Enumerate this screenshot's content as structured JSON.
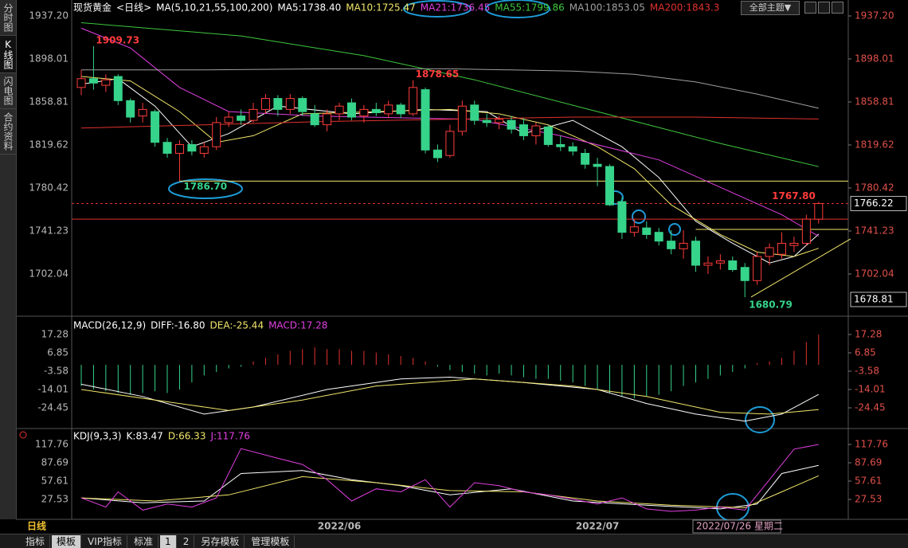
{
  "sidebar": {
    "tabs": [
      "分时图",
      "K线图",
      "闪电图",
      "合约资料"
    ]
  },
  "header": {
    "symbol": "现货黄金",
    "period": "<日线>",
    "indicator": "MA(5,10,21,55,100,200)",
    "theme_button": "全部主题▼"
  },
  "chart_data": [
    {
      "type": "candlestick",
      "categories": [
        null,
        null,
        null,
        null,
        null,
        null,
        null,
        null,
        null,
        null,
        null,
        null,
        null,
        null,
        null,
        null,
        null,
        null,
        null,
        null,
        null,
        "2022/06",
        null,
        null,
        null,
        null,
        null,
        null,
        null,
        null,
        null,
        null,
        null,
        null,
        null,
        null,
        null,
        null,
        null,
        null,
        null,
        null,
        "2022/07",
        null,
        null,
        null,
        null,
        null,
        null,
        null,
        null,
        null,
        null,
        null,
        null,
        null,
        null,
        null,
        null,
        null,
        null
      ],
      "open": [
        1872,
        1880,
        1874,
        1882,
        1860,
        1846,
        1850,
        1822,
        1812,
        1820,
        1812,
        1818,
        1840,
        1846,
        1842,
        1852,
        1862,
        1852,
        1862,
        1848,
        1838,
        1848,
        1858,
        1846,
        1852,
        1848,
        1856,
        1848,
        1870,
        1815,
        1810,
        1832,
        1856,
        1842,
        1840,
        1842,
        1838,
        1828,
        1836,
        1820,
        1818,
        1812,
        1802,
        1800,
        1768,
        1740,
        1744,
        1740,
        1732,
        1725,
        1732,
        1710,
        1712,
        1714,
        1708,
        1696,
        1718,
        1720,
        1728,
        1730,
        1752
      ],
      "high": [
        1888,
        1909.73,
        1884,
        1884,
        1862,
        1858,
        1852,
        1826,
        1824,
        1824,
        1822,
        1845,
        1850,
        1852,
        1858,
        1866,
        1865,
        1866,
        1864,
        1856,
        1852,
        1858,
        1862,
        1856,
        1858,
        1860,
        1858,
        1878.65,
        1872,
        1820,
        1838,
        1860,
        1860,
        1848,
        1846,
        1846,
        1844,
        1840,
        1838,
        1828,
        1822,
        1816,
        1808,
        1802,
        1772,
        1752,
        1750,
        1744,
        1742,
        1742,
        1736,
        1718,
        1720,
        1718,
        1712,
        1722,
        1730,
        1740,
        1736,
        1756,
        1767.8
      ],
      "low": [
        1865,
        1870,
        1868,
        1856,
        1840,
        1840,
        1818,
        1808,
        1786.7,
        1810,
        1808,
        1815,
        1836,
        1838,
        1840,
        1848,
        1846,
        1848,
        1846,
        1836,
        1832,
        1842,
        1842,
        1840,
        1846,
        1844,
        1844,
        1846,
        1812,
        1804,
        1808,
        1828,
        1838,
        1836,
        1834,
        1830,
        1824,
        1820,
        1818,
        1814,
        1810,
        1798,
        1782,
        1764,
        1734,
        1736,
        1734,
        1728,
        1720,
        1716,
        1704,
        1702,
        1706,
        1704,
        1680.79,
        1692,
        1710,
        1716,
        1722,
        1728,
        1748
      ],
      "close": [
        1880,
        1876,
        1879,
        1860,
        1845,
        1852,
        1822,
        1812,
        1820,
        1814,
        1818,
        1840,
        1845,
        1842,
        1852,
        1862,
        1852,
        1862,
        1850,
        1838,
        1848,
        1855,
        1845,
        1852,
        1849,
        1856,
        1848,
        1872,
        1815,
        1808,
        1832,
        1855,
        1842,
        1840,
        1843,
        1834,
        1828,
        1837,
        1820,
        1818,
        1814,
        1802,
        1800,
        1765,
        1740,
        1745,
        1738,
        1732,
        1725,
        1730,
        1710,
        1712,
        1714,
        1706,
        1696,
        1718,
        1726,
        1730,
        1730,
        1752,
        1766.22
      ],
      "high_labels": [
        null,
        "1909.73",
        null,
        null,
        null,
        null,
        null,
        null,
        null,
        null,
        null,
        null,
        null,
        null,
        null,
        null,
        null,
        null,
        null,
        null,
        null,
        null,
        null,
        null,
        null,
        null,
        null,
        "1878.65",
        null,
        null,
        null,
        null,
        null,
        null,
        null,
        null,
        null,
        null,
        null,
        null,
        null,
        null,
        null,
        null,
        null,
        null,
        null,
        null,
        null,
        null,
        null,
        null,
        null,
        null,
        null,
        null,
        null,
        null,
        null,
        null,
        "1767.80"
      ],
      "low_labels": [
        null,
        null,
        null,
        null,
        null,
        null,
        null,
        null,
        "1786.70",
        null,
        null,
        null,
        null,
        null,
        null,
        null,
        null,
        null,
        null,
        null,
        null,
        null,
        null,
        null,
        null,
        null,
        null,
        null,
        null,
        null,
        null,
        null,
        null,
        null,
        null,
        null,
        null,
        null,
        null,
        null,
        null,
        null,
        null,
        null,
        null,
        null,
        null,
        null,
        null,
        null,
        null,
        null,
        null,
        null,
        "1680.79",
        null,
        null,
        null,
        null,
        null,
        null
      ],
      "up_color": "#ff3b3b",
      "down_color": "#36d38a",
      "ylim": [
        1665.0,
        1943.0
      ],
      "yticks": [
        {
          "value": 1937.2,
          "label": "1937.20"
        },
        1898.01,
        1858.81,
        1819.62,
        1780.42,
        1741.23,
        1702.04
      ],
      "series": [
        {
          "name": "MA5:1738.40",
          "color": "#ffffff",
          "x": [
            0,
            3,
            6,
            9,
            12,
            16,
            22,
            28,
            33,
            36,
            40,
            44,
            47,
            50,
            53,
            56,
            58,
            60
          ],
          "values": [
            1875,
            1880,
            1855,
            1818,
            1830,
            1855,
            1848,
            1852,
            1850,
            1830,
            1842,
            1818,
            1790,
            1750,
            1730,
            1712,
            1718,
            1738.4
          ]
        },
        {
          "name": "MA10:1725.47",
          "color": "#f2e66a",
          "x": [
            0,
            4,
            8,
            11,
            14,
            18,
            24,
            30,
            34,
            38,
            42,
            45,
            48,
            52,
            55,
            58,
            60
          ],
          "values": [
            1882,
            1878,
            1850,
            1822,
            1828,
            1848,
            1850,
            1852,
            1848,
            1838,
            1818,
            1798,
            1765,
            1738,
            1722,
            1718,
            1725.47
          ]
        },
        {
          "name": "MA21:1736.45",
          "color": "#e040e0",
          "x": [
            0,
            4,
            8,
            12,
            19,
            32,
            39,
            47,
            52,
            57,
            60
          ],
          "values": [
            1926,
            1908,
            1872,
            1850,
            1846,
            1843,
            1828,
            1806,
            1781,
            1756,
            1736.45
          ]
        },
        {
          "name": "MA55:1799.86",
          "color": "#3ec83e",
          "x": [
            0,
            13,
            23,
            32,
            42,
            52,
            60
          ],
          "values": [
            1931,
            1919,
            1901,
            1879,
            1850,
            1821,
            1799.86
          ]
        },
        {
          "name": "MA100:1853.05",
          "color": "#a0a0a0",
          "x": [
            0,
            10,
            20,
            30,
            40,
            45,
            50,
            55,
            60
          ],
          "values": [
            1888,
            1888,
            1889,
            1889,
            1887,
            1884,
            1877,
            1866,
            1853.05
          ]
        },
        {
          "name": "MA200:1843.3",
          "color": "#e0322e",
          "x": [
            0,
            10,
            20,
            30,
            40,
            50,
            60
          ],
          "values": [
            1835,
            1838,
            1841,
            1843,
            1845,
            1845,
            1843.3
          ]
        }
      ],
      "hlines": [
        {
          "value": 1786.7,
          "from": 8,
          "color": "#f2e66a"
        },
        {
          "value": 1742.7,
          "from": 50,
          "color": "#f2e66a"
        },
        {
          "value": 1752.0,
          "color": "#e0322e"
        }
      ],
      "trendline": {
        "x": [
          54.5,
          62.6
        ],
        "values": [
          1681,
          1734
        ],
        "color": "#f2e66a"
      },
      "crosshair": {
        "date": "2022/07/26 星期二",
        "price": 1678.81
      },
      "period_label": "日线"
    },
    {
      "type": "bar",
      "title": "MACD(26,12,9)",
      "name": "MACD:17.28",
      "name_color": "#e040e0",
      "values": [
        -12,
        -14,
        -15,
        -16,
        -17,
        -16,
        -15,
        -16,
        -14,
        -10,
        -6,
        -4,
        -2,
        -1,
        2,
        4,
        6,
        8,
        9,
        10,
        9,
        9,
        8,
        8,
        7,
        6,
        5,
        4,
        2,
        -1,
        -3,
        -4,
        -5,
        -6,
        -5,
        -6,
        -7,
        -8,
        -8,
        -9,
        -10,
        -12,
        -14,
        -16,
        -18,
        -19,
        -18,
        -17,
        -15,
        -12,
        -10,
        -8,
        -6,
        -4,
        -2,
        1,
        2,
        4,
        8,
        13,
        17.28
      ],
      "up_color": "#e0322e",
      "down_color": "#36d38a",
      "ylim": [
        -34.87,
        26.35
      ],
      "yticks": [
        17.28,
        6.85,
        -3.58,
        -14.01,
        -24.45
      ],
      "series": [
        {
          "name": "DIFF:-16.80",
          "color": "#ffffff",
          "x": [
            0,
            5,
            10,
            14,
            20,
            26,
            30,
            36,
            42,
            46,
            50,
            54,
            57,
            60
          ],
          "values": [
            -11,
            -18,
            -28,
            -24,
            -14,
            -8,
            -7,
            -10,
            -14,
            -22,
            -28,
            -32,
            -28,
            -16.8
          ]
        },
        {
          "name": "DEA:-25.44",
          "color": "#f2e66a",
          "x": [
            0,
            6,
            12,
            18,
            24,
            32,
            40,
            46,
            52,
            56,
            60
          ],
          "values": [
            -14,
            -20,
            -26,
            -20,
            -12,
            -8,
            -12,
            -18,
            -27,
            -28,
            -25.44
          ]
        }
      ]
    },
    {
      "type": "line",
      "title": "KDJ(9,3,3)",
      "ylim": [
        -2.52,
        134.76
      ],
      "yticks": [
        117.76,
        87.69,
        57.61,
        27.53
      ],
      "series": [
        {
          "name": "K:83.47",
          "color": "#ffffff",
          "x": [
            0,
            5,
            10,
            13,
            18,
            22,
            26,
            30,
            35,
            40,
            46,
            52,
            55,
            57,
            60
          ],
          "values": [
            30,
            22,
            25,
            70,
            75,
            60,
            50,
            35,
            45,
            25,
            18,
            12,
            20,
            70,
            83.47
          ]
        },
        {
          "name": "D:66.33",
          "color": "#f2e66a",
          "x": [
            0,
            6,
            12,
            18,
            24,
            30,
            36,
            42,
            48,
            54,
            57,
            60
          ],
          "values": [
            30,
            25,
            35,
            65,
            55,
            42,
            40,
            25,
            18,
            14,
            40,
            66.33
          ]
        },
        {
          "name": "J:117.76",
          "color": "#e040e0",
          "x": [
            0,
            2,
            3,
            5,
            7,
            9,
            11,
            13,
            16,
            18,
            20,
            22,
            24,
            26,
            28,
            30,
            32,
            34,
            36,
            38,
            40,
            42,
            44,
            46,
            48,
            50,
            52,
            54,
            56,
            58,
            60
          ],
          "values": [
            30,
            15,
            40,
            10,
            20,
            15,
            30,
            111,
            95,
            85,
            60,
            25,
            45,
            40,
            60,
            15,
            55,
            50,
            40,
            35,
            28,
            20,
            30,
            12,
            8,
            10,
            15,
            10,
            60,
            110,
            117.76
          ]
        }
      ]
    }
  ],
  "toolbar": {
    "buttons": [
      "指标",
      "模板",
      "VIP指标",
      "标准",
      "1",
      "2",
      "另存模板",
      "管理模板"
    ]
  }
}
